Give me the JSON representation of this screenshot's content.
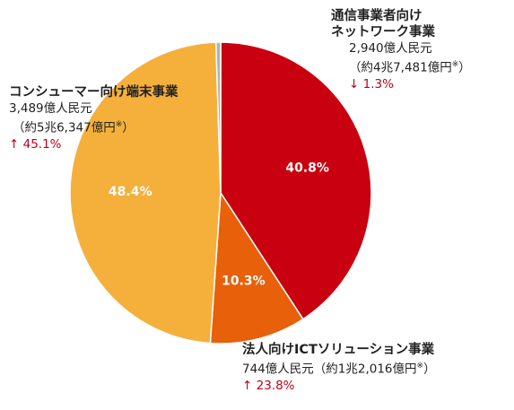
{
  "chart_data": {
    "type": "pie",
    "title": "",
    "slices": [
      {
        "label": "通信事業者向けネットワーク事業",
        "value": 40.8,
        "value_label": "40.8%",
        "color": "#c8000f"
      },
      {
        "label": "法人向けICTソリューション事業",
        "value": 10.3,
        "value_label": "10.3%",
        "color": "#e8600a"
      },
      {
        "label": "コンシューマー向け端末事業",
        "value": 48.4,
        "value_label": "48.4%",
        "color": "#f5b03b"
      },
      {
        "label": "",
        "value": 0.5,
        "value_label": "",
        "color": "#b2b2b2"
      }
    ]
  },
  "labels": {
    "network": {
      "name_line1": "通信事業者向け",
      "name_line2": "ネットワーク事業",
      "amount": "2,940億人民元",
      "yen": "（約4兆7,481億円",
      "note_mark": "※",
      "yen_close": "）",
      "change": "↓ 1.3%"
    },
    "consumer": {
      "name": "コンシューマー向け端末事業",
      "amount": "3,489億人民元",
      "yen": "（約5兆6,347億円",
      "note_mark": "※",
      "yen_close": "）",
      "change": "↑ 45.1%"
    },
    "ict": {
      "name": "法人向けICTソリューション事業",
      "amount": "744億人民元（約1兆2,016億円",
      "note_mark": "※",
      "yen_close": "）",
      "change": "↑ 23.8%"
    }
  }
}
